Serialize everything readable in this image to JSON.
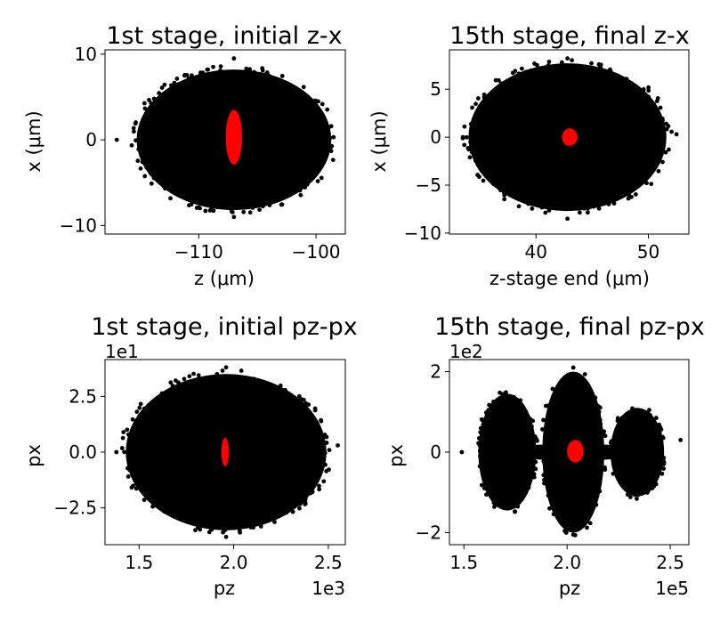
{
  "chart_data": [
    {
      "type": "scatter",
      "title": "1st stage, initial z-x",
      "xlabel": "z (μm)",
      "ylabel": "x (μm)",
      "xlim": [
        -118,
        -97.5
      ],
      "ylim": [
        -11,
        10.5
      ],
      "xticks": [
        {
          "v": -110,
          "label": "−110"
        },
        {
          "v": -100,
          "label": "−100"
        }
      ],
      "yticks": [
        {
          "v": 10,
          "label": "10"
        },
        {
          "v": 0,
          "label": "0"
        },
        {
          "v": -10,
          "label": "−10"
        }
      ],
      "x_offset_label": "",
      "y_offset_label": "",
      "series": [
        {
          "color": "#000000",
          "shape": "ellipse",
          "center": [
            -107,
            0
          ],
          "semi_axes": [
            8.3,
            8.2
          ],
          "extent_x": [
            -117,
            -98.5
          ],
          "extent_y": [
            -9,
            9.5
          ]
        },
        {
          "color": "#ff0000",
          "shape": "ellipse",
          "center": [
            -107,
            0.3
          ],
          "semi_axes": [
            0.7,
            3.2
          ]
        }
      ]
    },
    {
      "type": "scatter",
      "title": "15th stage, final z-x",
      "xlabel": "z-stage end (μm)",
      "ylabel": "x (μm)",
      "xlim": [
        32.3,
        53.6
      ],
      "ylim": [
        -10.1,
        9.1
      ],
      "xticks": [
        {
          "v": 40,
          "label": "40"
        },
        {
          "v": 50,
          "label": "50"
        }
      ],
      "yticks": [
        {
          "v": 5,
          "label": "5"
        },
        {
          "v": 0,
          "label": "0"
        },
        {
          "v": -5,
          "label": "−5"
        },
        {
          "v": -10,
          "label": "−10"
        }
      ],
      "x_offset_label": "",
      "y_offset_label": "",
      "series": [
        {
          "color": "#000000",
          "shape": "ellipse",
          "center": [
            42.8,
            0
          ],
          "semi_axes": [
            8.8,
            7.7
          ],
          "extent_x": [
            33.5,
            52.5
          ],
          "extent_y": [
            -8.5,
            8.2
          ]
        },
        {
          "color": "#ff0000",
          "shape": "ellipse",
          "center": [
            43,
            0
          ],
          "semi_axes": [
            0.7,
            0.9
          ]
        }
      ]
    },
    {
      "type": "scatter",
      "title": "1st stage, initial pz-px",
      "xlabel": "pz",
      "ylabel": "px",
      "xlim": [
        1.32,
        2.59
      ],
      "ylim": [
        -4.15,
        4.15
      ],
      "xticks": [
        {
          "v": 1.5,
          "label": "1.5"
        },
        {
          "v": 2.0,
          "label": "2.0"
        },
        {
          "v": 2.5,
          "label": "2.5"
        }
      ],
      "yticks": [
        {
          "v": 2.5,
          "label": "2.5"
        },
        {
          "v": 0,
          "label": "0.0"
        },
        {
          "v": -2.5,
          "label": "−2.5"
        }
      ],
      "x_offset_label": "1e3",
      "y_offset_label": "1e1",
      "series": [
        {
          "color": "#000000",
          "shape": "ellipse",
          "center": [
            1.96,
            0
          ],
          "semi_axes": [
            0.53,
            3.5
          ],
          "extent_x": [
            1.38,
            2.55
          ],
          "extent_y": [
            -3.8,
            3.8
          ]
        },
        {
          "color": "#ff0000",
          "shape": "ellipse",
          "center": [
            1.955,
            0
          ],
          "semi_axes": [
            0.02,
            0.65
          ]
        }
      ]
    },
    {
      "type": "scatter",
      "title": "15th stage, final pz-px",
      "xlabel": "pz",
      "ylabel": "px",
      "xlim": [
        1.43,
        2.59
      ],
      "ylim": [
        -2.3,
        2.3
      ],
      "xticks": [
        {
          "v": 1.5,
          "label": "1.5"
        },
        {
          "v": 2.0,
          "label": "2.0"
        },
        {
          "v": 2.5,
          "label": "2.5"
        }
      ],
      "yticks": [
        {
          "v": 2,
          "label": "2"
        },
        {
          "v": 0,
          "label": "0"
        },
        {
          "v": -2,
          "label": "−2"
        }
      ],
      "x_offset_label": "1e5",
      "y_offset_label": "1e2",
      "series": [
        {
          "color": "#000000",
          "shape": "three-lobes",
          "lobes": [
            [
              1.71,
              0,
              0.14,
              1.45
            ],
            [
              2.03,
              0,
              0.15,
              2.0
            ],
            [
              2.34,
              0,
              0.13,
              1.1
            ]
          ],
          "core": [
            2.03,
            0,
            0.42,
            0.2
          ],
          "extent_x": [
            1.49,
            2.55
          ],
          "extent_y": [
            -2.05,
            2.1
          ]
        },
        {
          "color": "#ff0000",
          "shape": "ellipse",
          "center": [
            2.04,
            0.02
          ],
          "semi_axes": [
            0.04,
            0.28
          ]
        }
      ]
    }
  ]
}
